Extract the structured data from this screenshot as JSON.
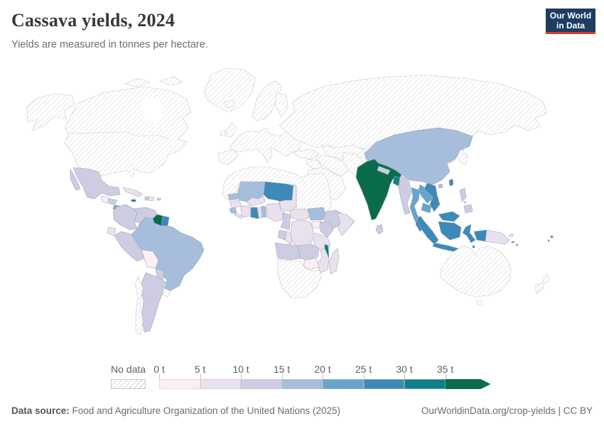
{
  "header": {
    "title": "Cassava yields, 2024",
    "subtitle": "Yields are measured in tonnes per hectare.",
    "logo_line1": "Our World",
    "logo_line2": "in Data"
  },
  "colors": {
    "logo_bg": "#1d3d63",
    "logo_accent": "#dc3a1e",
    "title_text": "#383838",
    "subtitle_text": "#6e6e6e",
    "hatch_line": "#d9d9d9",
    "border_nodata": "#c9c9c9",
    "border_country": "#9fa9b4",
    "ocean": "#ffffff"
  },
  "legend": {
    "no_data_label": "No data",
    "tick_labels": [
      "0 t",
      "5 t",
      "10 t",
      "15 t",
      "20 t",
      "25 t",
      "30 t",
      "35 t"
    ],
    "bin_keys": [
      "0-5",
      "5-10",
      "10-15",
      "15-20",
      "20-25",
      "25-30",
      "30-35",
      "35+"
    ],
    "bin_colors": [
      "#fbeff6",
      "#eae1ef",
      "#cdcce3",
      "#a6bddb",
      "#67a5cd",
      "#3d89b8",
      "#0f7f89",
      "#0a6c4a"
    ]
  },
  "footer": {
    "source_label": "Data source:",
    "source_text": " Food and Agriculture Organization of the United Nations (2025)",
    "citation": "OurWorldinData.org/crop-yields | CC BY"
  },
  "chart_data": {
    "type": "heatmap",
    "subtype": "choropleth-world-map",
    "title": "Cassava yields, 2024",
    "unit": "tonnes per hectare",
    "year": 2024,
    "legend_bins_tonnes": [
      0,
      5,
      10,
      15,
      20,
      25,
      30,
      35
    ],
    "legend_note": "values are yield ranges in tonnes per hectare estimated from map colors",
    "countries": {
      "Canada": "no-data",
      "United States": "no-data",
      "Greenland": "no-data",
      "Mexico": "10-15",
      "Guatemala": "0-5",
      "Honduras": "10-15",
      "Nicaragua": "20-25",
      "Costa Rica": "20-25",
      "Panama": "10-15",
      "Cuba": "5-10",
      "Jamaica": "30-35",
      "Haiti": "10-15",
      "Dominican Republic": "5-10",
      "Puerto Rico": "10-15",
      "Trinidad and Tobago": "25-30",
      "Colombia": "10-15",
      "Venezuela": "10-15",
      "Guyana": "35+",
      "Suriname": "25-30",
      "Ecuador": "5-10",
      "Peru": "10-15",
      "Brazil": "15-20",
      "Bolivia": "0-5",
      "Paraguay": "10-15",
      "Argentina": "10-15",
      "Chile": "no-data",
      "Uruguay": "no-data",
      "Europe": "no-data",
      "Iceland": "no-data",
      "United Kingdom": "no-data",
      "Ireland": "no-data",
      "Scandinavia": "no-data",
      "Russia": "no-data",
      "Turkey": "no-data",
      "Iran": "no-data",
      "Iraq and Levant": "no-data",
      "Arabian Peninsula": "no-data",
      "Central Asia": "no-data",
      "Afghanistan": "no-data",
      "Pakistan": "no-data",
      "Mongolia": "no-data",
      "Japan": "no-data",
      "Korea": "no-data",
      "North Africa": "no-data",
      "South Africa": "no-data",
      "Namibia": "no-data",
      "Botswana": "no-data",
      "Senegal": "15-20",
      "Guinea": "5-10",
      "Sierra Leone": "15-20",
      "Liberia": "5-10",
      "Ivory Coast": "5-10",
      "Ghana": "25-30",
      "Togo": "5-10",
      "Benin": "15-20",
      "Burkina Faso": "5-10",
      "Mali": "15-20",
      "Niger": "25-30",
      "Nigeria": "5-10",
      "Chad": "5-10",
      "Cameroon": "10-15",
      "Central African Republic": "5-10",
      "South Sudan": "15-20",
      "Ethiopia": "10-15",
      "Somalia": "5-10",
      "Uganda": "0-5",
      "Kenya": "10-15",
      "Tanzania": "5-10",
      "Gabon": "10-15",
      "Congo": "5-10",
      "Democratic Republic of Congo": "5-10",
      "Angola": "10-15",
      "Zambia": "10-15",
      "Malawi": "30-35",
      "Mozambique": "5-10",
      "Zimbabwe": "0-5",
      "Madagascar": "5-10",
      "India": "35+",
      "Nepal": "10-15",
      "Bangladesh": "30-35",
      "Sri Lanka": "10-15",
      "China": "15-20",
      "Myanmar": "10-15",
      "Thailand": "20-25",
      "Laos": "20-25",
      "Vietnam": "25-30",
      "Cambodia": "20-25",
      "Malaysia": "25-30",
      "Indonesia": "25-30",
      "Philippines": "10-15",
      "Taiwan": "25-30",
      "Papua New Guinea": "5-10",
      "Solomon Islands": "20-25",
      "Fiji": "25-30",
      "Australia": "no-data",
      "New Zealand": "no-data"
    }
  }
}
